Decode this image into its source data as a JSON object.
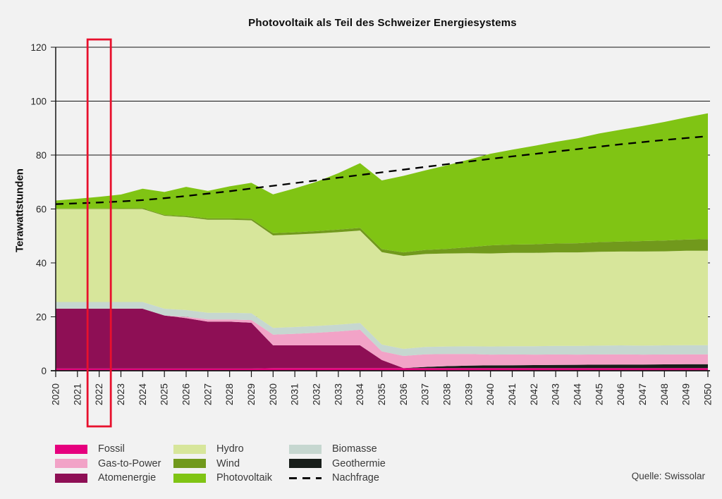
{
  "title": "Photovoltaik als Teil des Schweizer Energiesystems",
  "source": "Quelle: Swissolar",
  "colors": {
    "background": "#f2f2f2",
    "grid": "#141414",
    "axis": "#141414",
    "tick_label": "#262626",
    "highlight_red": "#e8112d"
  },
  "chart_data": {
    "type": "area",
    "stacked": true,
    "title": "Photovoltaik als Teil des Schweizer Energiesystems",
    "xlabel": "",
    "ylabel": "Terawattstunden",
    "ylim": [
      0,
      120
    ],
    "yticks": [
      0,
      20,
      40,
      60,
      80,
      100,
      120
    ],
    "grid": "horizontal",
    "x": [
      2020,
      2021,
      2022,
      2023,
      2024,
      2025,
      2026,
      2027,
      2028,
      2029,
      2030,
      2031,
      2032,
      2033,
      2034,
      2035,
      2036,
      2037,
      2038,
      2039,
      2040,
      2041,
      2042,
      2043,
      2044,
      2045,
      2046,
      2047,
      2048,
      2049,
      2050
    ],
    "series": [
      {
        "name": "Fossil",
        "key": "fossil",
        "color": "#e6007e",
        "values": [
          0.8,
          0.8,
          0.8,
          0.8,
          0.8,
          0.8,
          0.8,
          0.8,
          0.8,
          0.8,
          1,
          1,
          1,
          1,
          1,
          1,
          1,
          1,
          1,
          1,
          1,
          1,
          1,
          1,
          1,
          1,
          1,
          1,
          1,
          1,
          1
        ]
      },
      {
        "name": "Atomenergie",
        "key": "atomenergie",
        "color": "#8e0f55",
        "values": [
          22.2,
          22.2,
          22.2,
          22.2,
          22.2,
          19.7,
          18.7,
          17.4,
          17.4,
          17,
          8.4,
          8.4,
          8.4,
          8.4,
          8.4,
          3,
          0,
          0,
          0,
          0,
          0,
          0,
          0,
          0,
          0,
          0,
          0,
          0,
          0,
          0,
          0
        ]
      },
      {
        "name": "Geothermie",
        "key": "geothermie",
        "color": "#181e1a",
        "values": [
          0,
          0,
          0,
          0,
          0,
          0,
          0,
          0,
          0,
          0,
          0,
          0,
          0,
          0,
          0,
          0,
          0,
          0.4,
          0.7,
          0.9,
          1,
          1.05,
          1.1,
          1.15,
          1.2,
          1.25,
          1.3,
          1.3,
          1.35,
          1.4,
          1.4
        ]
      },
      {
        "name": "Gas-to-Power",
        "key": "gas-to-power",
        "color": "#f2a3c7",
        "values": [
          0,
          0,
          0,
          0,
          0,
          0,
          0.5,
          0.8,
          0.8,
          1,
          4,
          4.3,
          4.7,
          5.2,
          5.8,
          3.2,
          4.5,
          4.7,
          4.5,
          4.3,
          4,
          4,
          3.9,
          3.9,
          3.8,
          3.8,
          3.8,
          3.7,
          3.7,
          3.7,
          3.7
        ]
      },
      {
        "name": "Biomasse",
        "key": "biomasse",
        "color": "#c6d7d0",
        "values": [
          2.5,
          2.5,
          2.5,
          2.5,
          2.5,
          2.5,
          2.5,
          2.5,
          2.5,
          2.5,
          2.5,
          2.5,
          2.5,
          2.5,
          2.5,
          2.5,
          2.6,
          2.7,
          2.8,
          2.9,
          3,
          3.05,
          3.1,
          3.15,
          3.2,
          3.25,
          3.3,
          3.3,
          3.35,
          3.4,
          3.4
        ]
      },
      {
        "name": "Hydro",
        "key": "hydro",
        "color": "#d7e69b",
        "values": [
          34.5,
          34.5,
          34.5,
          34.5,
          34.5,
          34.5,
          34.5,
          34.5,
          34.5,
          34.5,
          34.3,
          34.3,
          34.3,
          34.3,
          34.3,
          34.3,
          34.5,
          34.5,
          34.5,
          34.5,
          34.5,
          34.6,
          34.6,
          34.7,
          34.7,
          34.8,
          34.8,
          34.9,
          34.9,
          35,
          35
        ]
      },
      {
        "name": "Wind",
        "key": "wind",
        "color": "#71991c",
        "values": [
          0.15,
          0.2,
          0.2,
          0.25,
          0.3,
          0.3,
          0.4,
          0.5,
          0.5,
          0.6,
          0.8,
          0.85,
          0.9,
          0.95,
          1,
          1.1,
          1.3,
          1.5,
          1.7,
          2.2,
          3,
          3.1,
          3.2,
          3.3,
          3.4,
          3.6,
          3.7,
          3.9,
          4,
          4.15,
          4.3
        ]
      },
      {
        "name": "Photovoltaik",
        "key": "photovoltaik",
        "color": "#80c414",
        "values": [
          3,
          3.6,
          4.3,
          5.1,
          7.2,
          8.5,
          10.8,
          10.2,
          11.9,
          13.3,
          14.4,
          16.3,
          18.3,
          20.9,
          24,
          25.5,
          28.4,
          29.5,
          31,
          32.5,
          34,
          35.2,
          36.5,
          37.7,
          38.9,
          40.3,
          41.5,
          42.7,
          44,
          45.3,
          46.7
        ]
      }
    ],
    "demand_line": {
      "name": "Nachfrage",
      "color": "#000000",
      "style": "dashed",
      "values": [
        61.8,
        62.1,
        62.4,
        62.8,
        63.3,
        64,
        64.8,
        65.7,
        66.6,
        67.6,
        68.6,
        69.6,
        70.6,
        71.6,
        72.6,
        73.6,
        74.6,
        75.6,
        76.6,
        77.6,
        78.6,
        79.5,
        80.4,
        81.3,
        82.2,
        83.1,
        84,
        84.8,
        85.6,
        86.3,
        87
      ]
    },
    "highlight": {
      "year": 2022
    },
    "legend_position": "bottom"
  },
  "legend": {
    "columns": [
      [
        {
          "label": "Fossil",
          "key": "fossil",
          "color": "#e6007e",
          "type": "box"
        },
        {
          "label": "Gas-to-Power",
          "key": "gas-to-power",
          "color": "#f2a3c7",
          "type": "box"
        },
        {
          "label": "Atomenergie",
          "key": "atomenergie",
          "color": "#8e0f55",
          "type": "box"
        }
      ],
      [
        {
          "label": "Hydro",
          "key": "hydro",
          "color": "#d7e69b",
          "type": "box"
        },
        {
          "label": "Wind",
          "key": "wind",
          "color": "#71991c",
          "type": "box"
        },
        {
          "label": "Photovoltaik",
          "key": "photovoltaik",
          "color": "#80c414",
          "type": "box"
        }
      ],
      [
        {
          "label": "Biomasse",
          "key": "biomasse",
          "color": "#c6d7d0",
          "type": "box"
        },
        {
          "label": "Geothermie",
          "key": "geothermie",
          "color": "#181e1a",
          "type": "box"
        },
        {
          "label": "Nachfrage",
          "key": "nachfrage",
          "color": "#000000",
          "type": "dash"
        }
      ]
    ]
  }
}
